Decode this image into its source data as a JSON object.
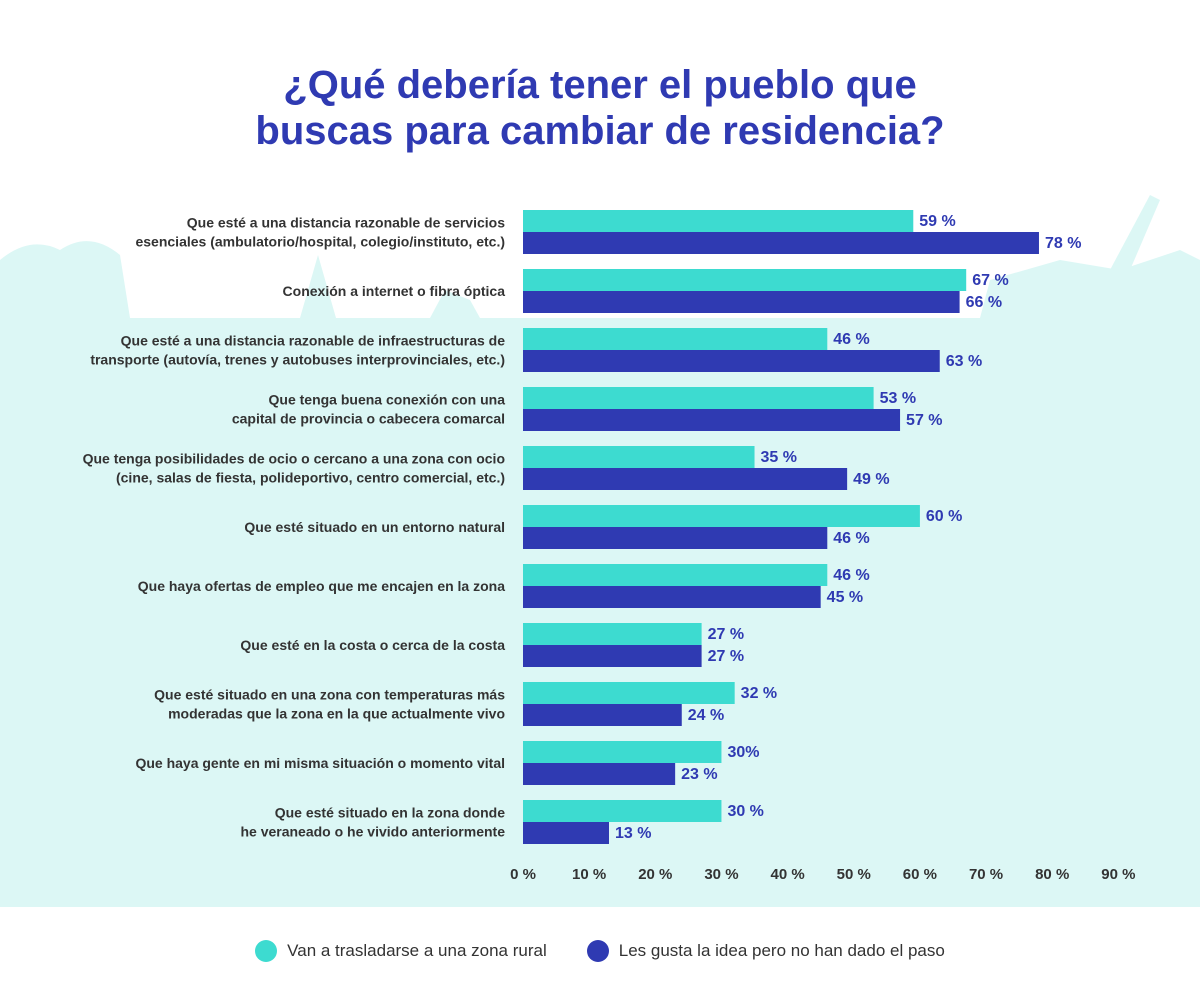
{
  "title_line1": "¿Qué debería tener el pueblo que",
  "title_line2": "buscas para cambiar de residencia?",
  "colors": {
    "teal": "#3ddbd0",
    "blue": "#2f3ab2",
    "label_text": "#333333",
    "background_band": "#dcf7f5"
  },
  "chart_data": {
    "type": "bar",
    "orientation": "horizontal",
    "categories": [
      [
        "Que esté a una distancia razonable de servicios",
        "esenciales (ambulatorio/hospital, colegio/instituto, etc.)"
      ],
      [
        "Conexión a internet o fibra óptica"
      ],
      [
        "Que esté a una distancia razonable de infraestructuras de",
        "transporte (autovía, trenes y autobuses interprovinciales, etc.)"
      ],
      [
        "Que tenga buena conexión con una",
        "capital de provincia o cabecera comarcal"
      ],
      [
        "Que tenga posibilidades de ocio o cercano a una zona con ocio",
        "(cine, salas de fiesta, polideportivo, centro comercial, etc.)"
      ],
      [
        "Que esté situado en un entorno natural"
      ],
      [
        "Que haya ofertas de empleo que me encajen en la zona"
      ],
      [
        "Que esté en la costa o cerca de la costa"
      ],
      [
        "Que esté situado en una zona con temperaturas más",
        "moderadas que la zona en la que actualmente vivo"
      ],
      [
        "Que haya gente en mi misma situación o momento vital"
      ],
      [
        "Que esté situado en la zona donde",
        "he veraneado o he vivido anteriormente"
      ]
    ],
    "series": [
      {
        "name": "Van a trasladarse a una zona rural",
        "color": "#3ddbd0",
        "values": [
          59,
          67,
          46,
          53,
          35,
          60,
          46,
          27,
          32,
          30,
          30
        ],
        "labels": [
          "59 %",
          "67 %",
          "46 %",
          "53 %",
          "35 %",
          "60 %",
          "46 %",
          "27 %",
          "32 %",
          "30%",
          "30 %"
        ]
      },
      {
        "name": "Les gusta la idea pero no han dado el paso",
        "color": "#2f3ab2",
        "values": [
          78,
          66,
          63,
          57,
          49,
          46,
          45,
          27,
          24,
          23,
          13
        ],
        "labels": [
          "78 %",
          "66 %",
          "63 %",
          "57 %",
          "49 %",
          "46 %",
          "45 %",
          "27 %",
          "24 %",
          "23 %",
          "13 %"
        ]
      }
    ],
    "xlim": [
      0,
      90
    ],
    "xticks": [
      "0 %",
      "10 %",
      "20 %",
      "30 %",
      "40 %",
      "50 %",
      "60 %",
      "70 %",
      "80 %",
      "90 %"
    ],
    "grid": false,
    "legend_position": "bottom"
  }
}
